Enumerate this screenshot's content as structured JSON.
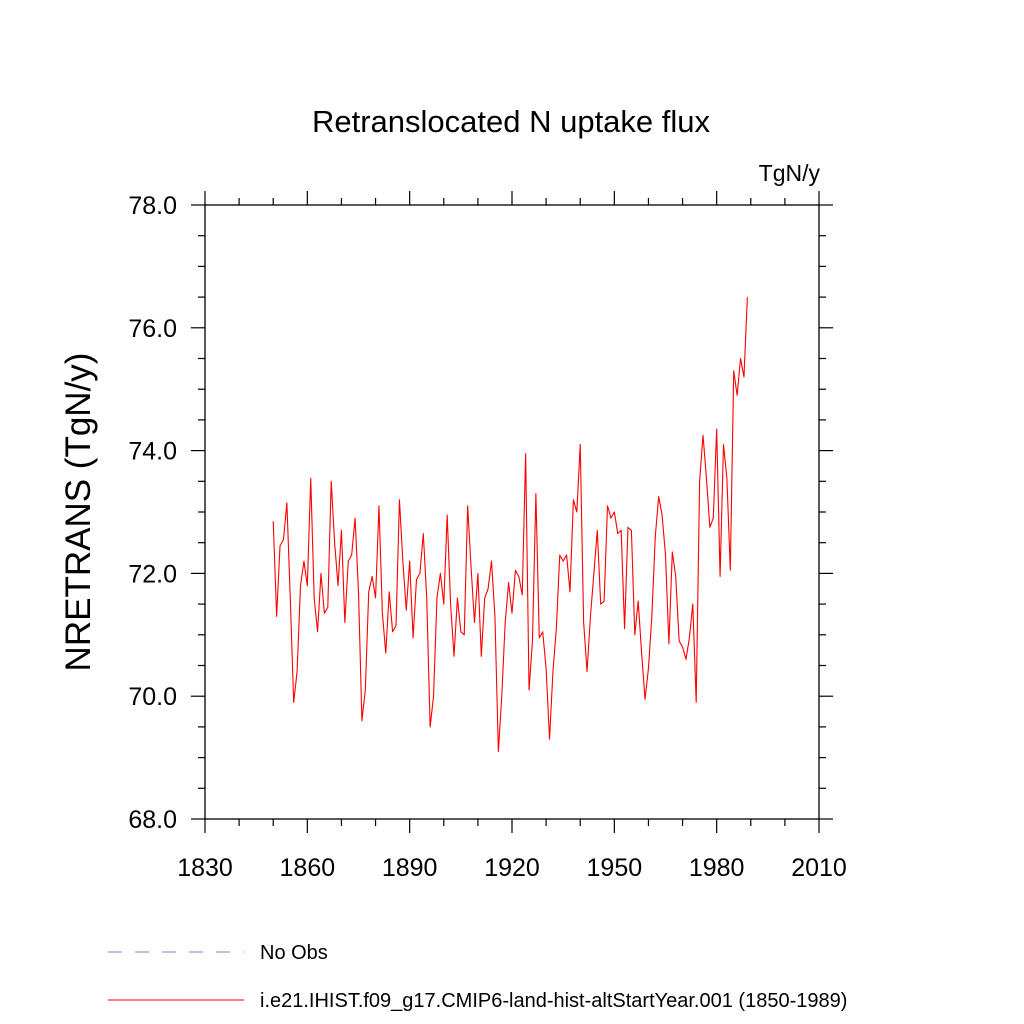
{
  "chart_data": {
    "type": "line",
    "title": "Retranslocated N uptake flux",
    "units_label": "TgN/y",
    "xlabel": "",
    "ylabel": "NRETRANS  (TgN/y)",
    "xlim": [
      1830,
      2010
    ],
    "ylim": [
      68.0,
      78.0
    ],
    "x_ticks": [
      "1830",
      "1860",
      "1890",
      "1920",
      "1950",
      "1980",
      "2010"
    ],
    "y_ticks": [
      "68.0",
      "70.0",
      "72.0",
      "74.0",
      "76.0",
      "78.0"
    ],
    "grid": false,
    "legend_position": "bottom-left",
    "legend": [
      {
        "label": "No Obs",
        "style": "dashed",
        "color": "#8a7fbf"
      },
      {
        "label": "i.e21.IHIST.f09_g17.CMIP6-land-hist-altStartYear.001 (1850-1989)",
        "style": "solid",
        "color": "#ff0000"
      }
    ],
    "series": [
      {
        "name": "i.e21.IHIST.f09_g17.CMIP6-land-hist-altStartYear.001 (1850-1989)",
        "color": "#ff0000",
        "x_start": 1850,
        "x_step": 1,
        "values": [
          72.85,
          71.3,
          72.45,
          72.55,
          73.15,
          71.6,
          69.9,
          70.4,
          71.8,
          72.2,
          71.8,
          73.55,
          71.6,
          71.05,
          72.0,
          71.35,
          71.45,
          73.5,
          72.5,
          71.8,
          72.7,
          71.2,
          72.2,
          72.3,
          72.9,
          71.7,
          69.6,
          70.1,
          71.7,
          71.95,
          71.6,
          73.1,
          71.35,
          70.7,
          71.7,
          71.05,
          71.15,
          73.2,
          72.2,
          71.4,
          72.2,
          70.95,
          71.9,
          72.0,
          72.65,
          71.6,
          69.5,
          70.0,
          71.6,
          72.0,
          71.5,
          72.95,
          71.5,
          70.65,
          71.6,
          71.05,
          71.0,
          73.1,
          72.1,
          71.2,
          72.0,
          70.65,
          71.6,
          71.75,
          72.2,
          71.3,
          69.1,
          70.0,
          71.2,
          71.85,
          71.35,
          72.05,
          71.95,
          71.65,
          73.95,
          70.1,
          70.9,
          73.3,
          70.95,
          71.05,
          70.45,
          69.3,
          70.4,
          71.1,
          72.3,
          72.2,
          72.3,
          71.7,
          73.2,
          73.0,
          74.1,
          71.2,
          70.4,
          71.3,
          72.0,
          72.7,
          71.5,
          71.55,
          73.1,
          72.9,
          73.0,
          72.65,
          72.7,
          71.1,
          72.75,
          72.7,
          71.0,
          71.55,
          70.7,
          69.95,
          70.45,
          71.3,
          72.6,
          73.25,
          72.95,
          72.3,
          70.85,
          72.35,
          71.95,
          70.9,
          70.8,
          70.6,
          70.95,
          71.5,
          69.9,
          73.5,
          74.25,
          73.55,
          72.75,
          72.9,
          74.35,
          71.95,
          74.1,
          73.55,
          72.05,
          75.3,
          74.9,
          75.5,
          75.2,
          76.5
        ]
      }
    ]
  }
}
